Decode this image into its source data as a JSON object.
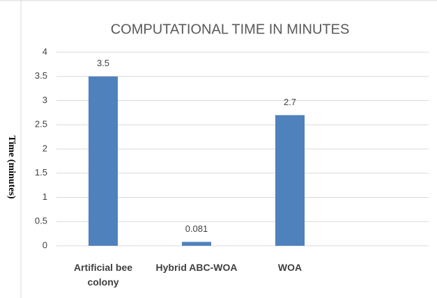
{
  "chart_data": {
    "type": "bar",
    "title": "COMPUTATIONAL TIME IN MINUTES",
    "y_label": "Time (minutes)",
    "categories": [
      "Artificial bee colony",
      "Hybrid ABC-WOA",
      "WOA"
    ],
    "values": [
      3.5,
      0.081,
      2.7
    ],
    "color": "#4f81bd",
    "ylim": [
      0,
      4
    ],
    "yticks": [
      0,
      0.5,
      1,
      1.5,
      2,
      2.5,
      3,
      3.5,
      4
    ],
    "grid": true
  }
}
